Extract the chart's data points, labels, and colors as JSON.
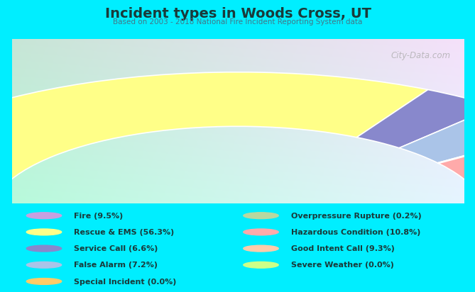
{
  "title": "Incident types in Woods Cross, UT",
  "subtitle": "Based on 2003 - 2018 National Fire Incident Reporting System data",
  "outer_bg_color": "#00eeff",
  "chart_bg_gradient_tl": "#c8e8d8",
  "chart_bg_gradient_br": "#e8f0f8",
  "title_color": "#1a3a3a",
  "subtitle_color": "#447788",
  "legend_text_color": "#1a3a3a",
  "segments": [
    {
      "label": "Fire (9.5%)",
      "value": 9.5,
      "color": "#c8a0e0"
    },
    {
      "label": "Rescue & EMS (56.3%)",
      "value": 56.3,
      "color": "#ffff88"
    },
    {
      "label": "Service Call (6.6%)",
      "value": 6.6,
      "color": "#8888cc"
    },
    {
      "label": "False Alarm (7.2%)",
      "value": 7.2,
      "color": "#aac4e8"
    },
    {
      "label": "Special Incident (0.0%)",
      "value": 0.01,
      "color": "#ffcc66"
    },
    {
      "label": "Overpressure Rupture (0.2%)",
      "value": 0.2,
      "color": "#b8d8a0"
    },
    {
      "label": "Hazardous Condition (10.8%)",
      "value": 10.8,
      "color": "#ffaaaa"
    },
    {
      "label": "Good Intent Call (9.3%)",
      "value": 9.3,
      "color": "#ffccaa"
    },
    {
      "label": "Severe Weather (0.0%)",
      "value": 0.01,
      "color": "#ccff88"
    }
  ],
  "watermark": "City-Data.com"
}
